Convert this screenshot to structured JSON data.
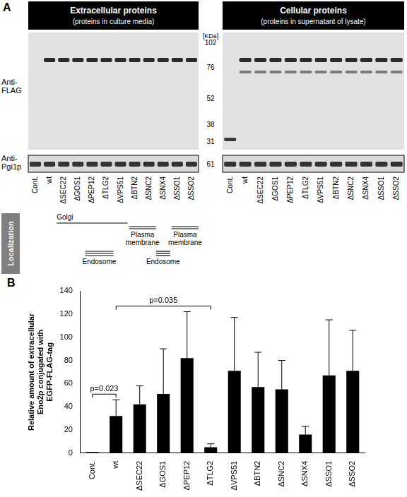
{
  "panel_a": {
    "letter": "A",
    "blots": [
      {
        "title": "Extracellular proteins",
        "subtitle": "(proteins in culture media)"
      },
      {
        "title": "Cellular proteins",
        "subtitle": "(proteins in supernatant of lysate)"
      }
    ],
    "antibodies": [
      "Anti-FLAG",
      "Anti-Pgi1p"
    ],
    "size_unit": "[KDa]",
    "size_markers": [
      102,
      76,
      52,
      38,
      31
    ],
    "pgi1p_marker": 61,
    "lanes": [
      "Cont.",
      "wt",
      "ΔSEC22",
      "ΔGOS1",
      "ΔPEP12",
      "ΔTLG2",
      "ΔVPS51",
      "ΔBTN2",
      "ΔSNC2",
      "ΔSNX4",
      "ΔSSO1",
      "ΔSSO2"
    ],
    "localization": {
      "title": "Localization",
      "groups": [
        {
          "label": "Golgi",
          "lanes": [
            "ΔSEC22",
            "ΔVPS51"
          ]
        },
        {
          "label": "Plasma membrane",
          "lanes": [
            "ΔBTN2",
            "ΔSNC2"
          ]
        },
        {
          "label": "Endosome",
          "lanes": [
            "ΔPEP12",
            "ΔTLG2"
          ]
        },
        {
          "label": "Endosome",
          "lanes": [
            "ΔSNX4",
            "ΔSNX4"
          ]
        },
        {
          "label": "Plasma membrane",
          "lanes": [
            "ΔSSO1",
            "ΔSSO2"
          ]
        }
      ]
    }
  },
  "chart_data": {
    "type": "bar",
    "panel_label": "B",
    "y_label": "Relative amount of extracellular Eno2p conjugated with EGFP-FLAG-tag",
    "categories": [
      "Cont.",
      "wt",
      "ΔSEC22",
      "ΔGOS1",
      "ΔPEP12",
      "ΔTLG2",
      "ΔVPS51",
      "ΔBTN2",
      "ΔSNC2",
      "ΔSNX4",
      "ΔSSO1",
      "ΔSSO2"
    ],
    "values": [
      1,
      32,
      42,
      51,
      82,
      5,
      71,
      57,
      55,
      16,
      67,
      71
    ],
    "errors": [
      0,
      14,
      16,
      39,
      40,
      3,
      46,
      30,
      25,
      7,
      48,
      35
    ],
    "color": "#000000",
    "ylim": [
      0,
      140
    ],
    "yticks": [
      0,
      20,
      40,
      60,
      80,
      100,
      120,
      140
    ],
    "grid": false,
    "annotations": [
      {
        "text": "p=0.023",
        "between": [
          "Cont.",
          "wt"
        ]
      },
      {
        "text": "p=0.035",
        "between": [
          "wt",
          "ΔTLG2"
        ]
      }
    ]
  }
}
